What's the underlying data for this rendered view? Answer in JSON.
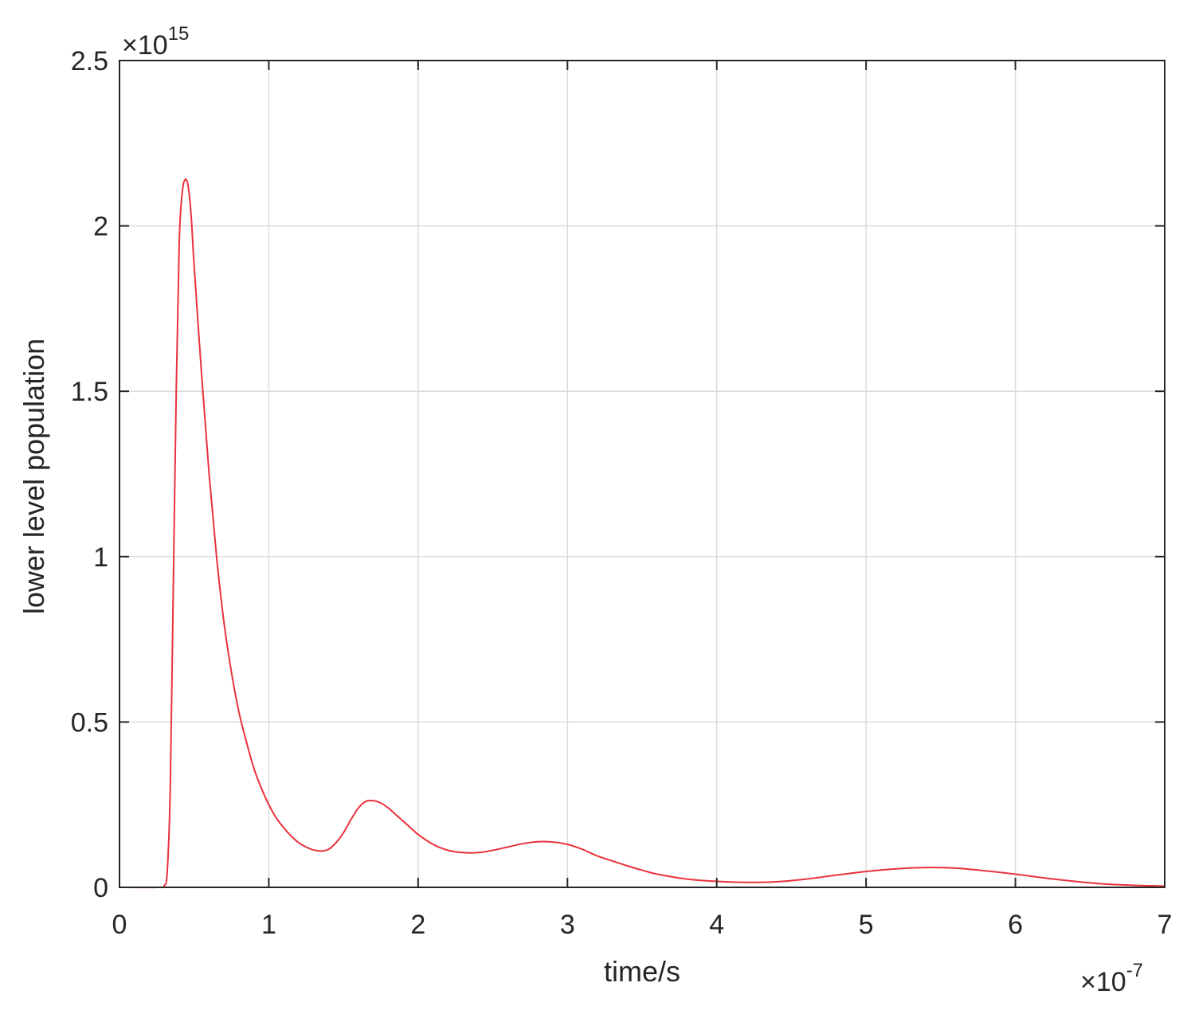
{
  "chart_data": {
    "type": "line",
    "xlabel": "time/s",
    "ylabel": "lower level population",
    "x_multiplier": {
      "base": "×10",
      "exponent": "-7"
    },
    "y_multiplier": {
      "base": "×10",
      "exponent": "15"
    },
    "xlim": [
      0,
      7
    ],
    "ylim": [
      0,
      2.5
    ],
    "x_ticks": [
      "0",
      "1",
      "2",
      "3",
      "4",
      "5",
      "6",
      "7"
    ],
    "y_ticks": [
      "0",
      "0.5",
      "1",
      "1.5",
      "2",
      "2.5"
    ],
    "grid": true,
    "colors": {
      "line": "#e8323c",
      "axis": "#262626",
      "grid": "#dcdcdc"
    },
    "series": [
      {
        "x": [
          0,
          0.25,
          0.3,
          0.32,
          0.34,
          0.36,
          0.38,
          0.4,
          0.42,
          0.44,
          0.46,
          0.48,
          0.5,
          0.55,
          0.6,
          0.65,
          0.7,
          0.75,
          0.8,
          0.85,
          0.9,
          0.95,
          1.0,
          1.05,
          1.1,
          1.15,
          1.2,
          1.25,
          1.3,
          1.35,
          1.4,
          1.45,
          1.5,
          1.55,
          1.6,
          1.65,
          1.7,
          1.75,
          1.8,
          1.85,
          1.9,
          1.95,
          2.0,
          2.1,
          2.2,
          2.3,
          2.4,
          2.5,
          2.6,
          2.7,
          2.8,
          2.9,
          3.0,
          3.1,
          3.2,
          3.3,
          3.4,
          3.5,
          3.6,
          3.8,
          4.0,
          4.2,
          4.4,
          4.6,
          4.8,
          5.0,
          5.2,
          5.4,
          5.6,
          5.8,
          6.0,
          6.2,
          6.4,
          6.6,
          6.8,
          7.0
        ],
        "y": [
          0,
          0,
          0.005,
          0.05,
          0.3,
          0.9,
          1.5,
          1.95,
          2.1,
          2.14,
          2.12,
          2.03,
          1.88,
          1.55,
          1.25,
          1.0,
          0.8,
          0.65,
          0.53,
          0.44,
          0.36,
          0.3,
          0.25,
          0.21,
          0.18,
          0.155,
          0.135,
          0.122,
          0.113,
          0.11,
          0.115,
          0.135,
          0.165,
          0.205,
          0.24,
          0.26,
          0.262,
          0.255,
          0.24,
          0.22,
          0.2,
          0.18,
          0.16,
          0.13,
          0.112,
          0.105,
          0.105,
          0.112,
          0.122,
          0.132,
          0.138,
          0.137,
          0.13,
          0.115,
          0.095,
          0.08,
          0.065,
          0.052,
          0.04,
          0.025,
          0.018,
          0.015,
          0.017,
          0.025,
          0.037,
          0.048,
          0.056,
          0.06,
          0.058,
          0.05,
          0.04,
          0.028,
          0.018,
          0.01,
          0.006,
          0.004
        ]
      }
    ]
  }
}
